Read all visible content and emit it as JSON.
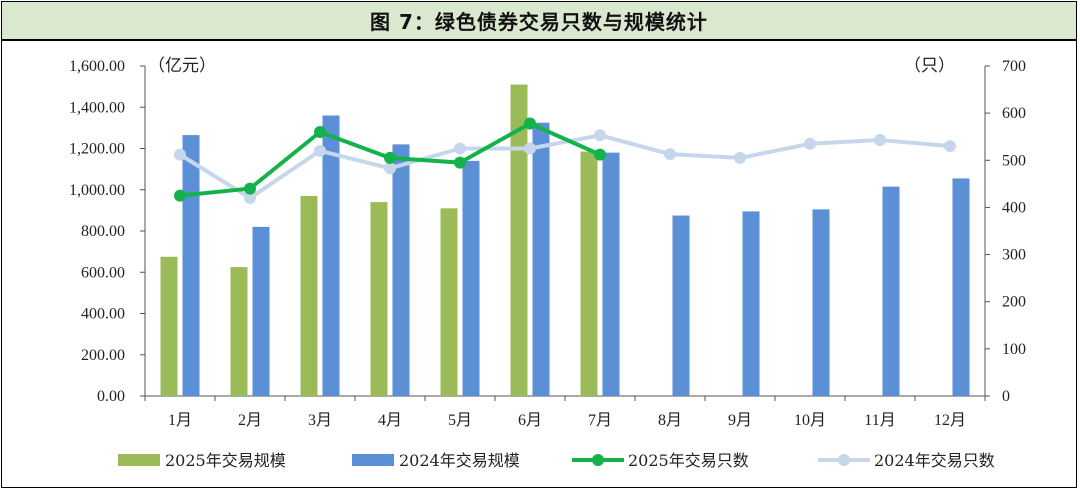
{
  "title": "图 7：绿色债券交易只数与规模统计",
  "chart_data": {
    "type": "bar",
    "categories": [
      "1月",
      "2月",
      "3月",
      "4月",
      "5月",
      "6月",
      "7月",
      "8月",
      "9月",
      "10月",
      "11月",
      "12月"
    ],
    "left_axis": {
      "unit_label": "（亿元）",
      "ylim": [
        0,
        1600
      ],
      "ticks": [
        "0.00",
        "200.00",
        "400.00",
        "600.00",
        "800.00",
        "1,000.00",
        "1,200.00",
        "1,400.00",
        "1,600.00"
      ]
    },
    "right_axis": {
      "unit_label": "（只）",
      "ylim": [
        0,
        700
      ],
      "ticks": [
        "0",
        "100",
        "200",
        "300",
        "400",
        "500",
        "600",
        "700"
      ]
    },
    "series": [
      {
        "name": "2025年交易规模",
        "kind": "bar",
        "axis": "left",
        "color": "#9bbb59",
        "values": [
          675,
          625,
          970,
          940,
          910,
          1510,
          1185,
          null,
          null,
          null,
          null,
          null
        ]
      },
      {
        "name": "2024年交易规模",
        "kind": "bar",
        "axis": "left",
        "color": "#5b8fd6",
        "values": [
          1265,
          820,
          1360,
          1220,
          1140,
          1325,
          1180,
          875,
          895,
          905,
          1015,
          1055
        ]
      },
      {
        "name": "2025年交易只数",
        "kind": "line",
        "axis": "right",
        "color": "#13b24a",
        "values": [
          425,
          440,
          560,
          505,
          495,
          578,
          512,
          null,
          null,
          null,
          null,
          null
        ]
      },
      {
        "name": "2024年交易只数",
        "kind": "line",
        "axis": "right",
        "color": "#c6d7ec",
        "values": [
          512,
          420,
          520,
          483,
          525,
          525,
          553,
          513,
          505,
          535,
          543,
          530
        ]
      }
    ],
    "grid": false,
    "legend_position": "bottom"
  }
}
